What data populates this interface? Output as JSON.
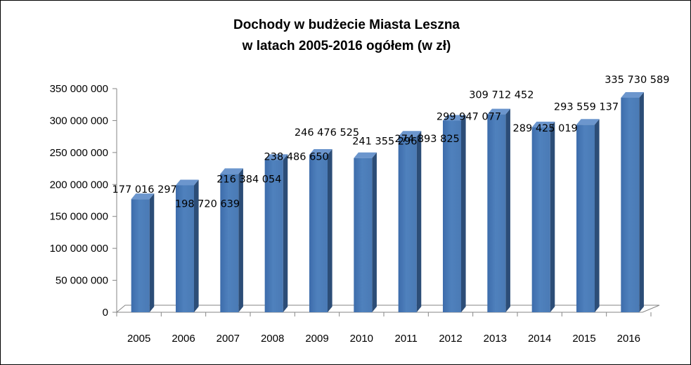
{
  "chart_data": {
    "type": "bar",
    "title": [
      "Dochody w budżecie Miasta Leszna",
      "w latach 2005-2016 ogółem (w zł)"
    ],
    "categories": [
      "2005",
      "2006",
      "2007",
      "2008",
      "2009",
      "2010",
      "2011",
      "2012",
      "2013",
      "2014",
      "2015",
      "2016"
    ],
    "values": [
      177016297,
      198720639,
      216384054,
      238486650,
      246476525,
      241355296,
      274893825,
      299947077,
      309712452,
      289425019,
      293559137,
      335730589
    ],
    "value_labels": [
      "177 016 297",
      "198 720 639",
      "216 384 054",
      "238 486 650",
      "246 476 525",
      "241 355 296",
      "274 893 825",
      "299 947 077",
      "309 712 452",
      "289 425 019",
      "293 559 137",
      "335 730 589"
    ],
    "y_ticks": [
      0,
      50000000,
      100000000,
      150000000,
      200000000,
      250000000,
      300000000,
      350000000
    ],
    "y_tick_labels": [
      "0",
      "50 000 000",
      "100 000 000",
      "150 000 000",
      "200 000 000",
      "250 000 000",
      "300 000 000",
      "350 000 000"
    ],
    "ylim": [
      0,
      350000000
    ],
    "xlabel": "",
    "ylabel": "",
    "grid": false,
    "legend": "none",
    "bar_color": "#4f81bd"
  }
}
